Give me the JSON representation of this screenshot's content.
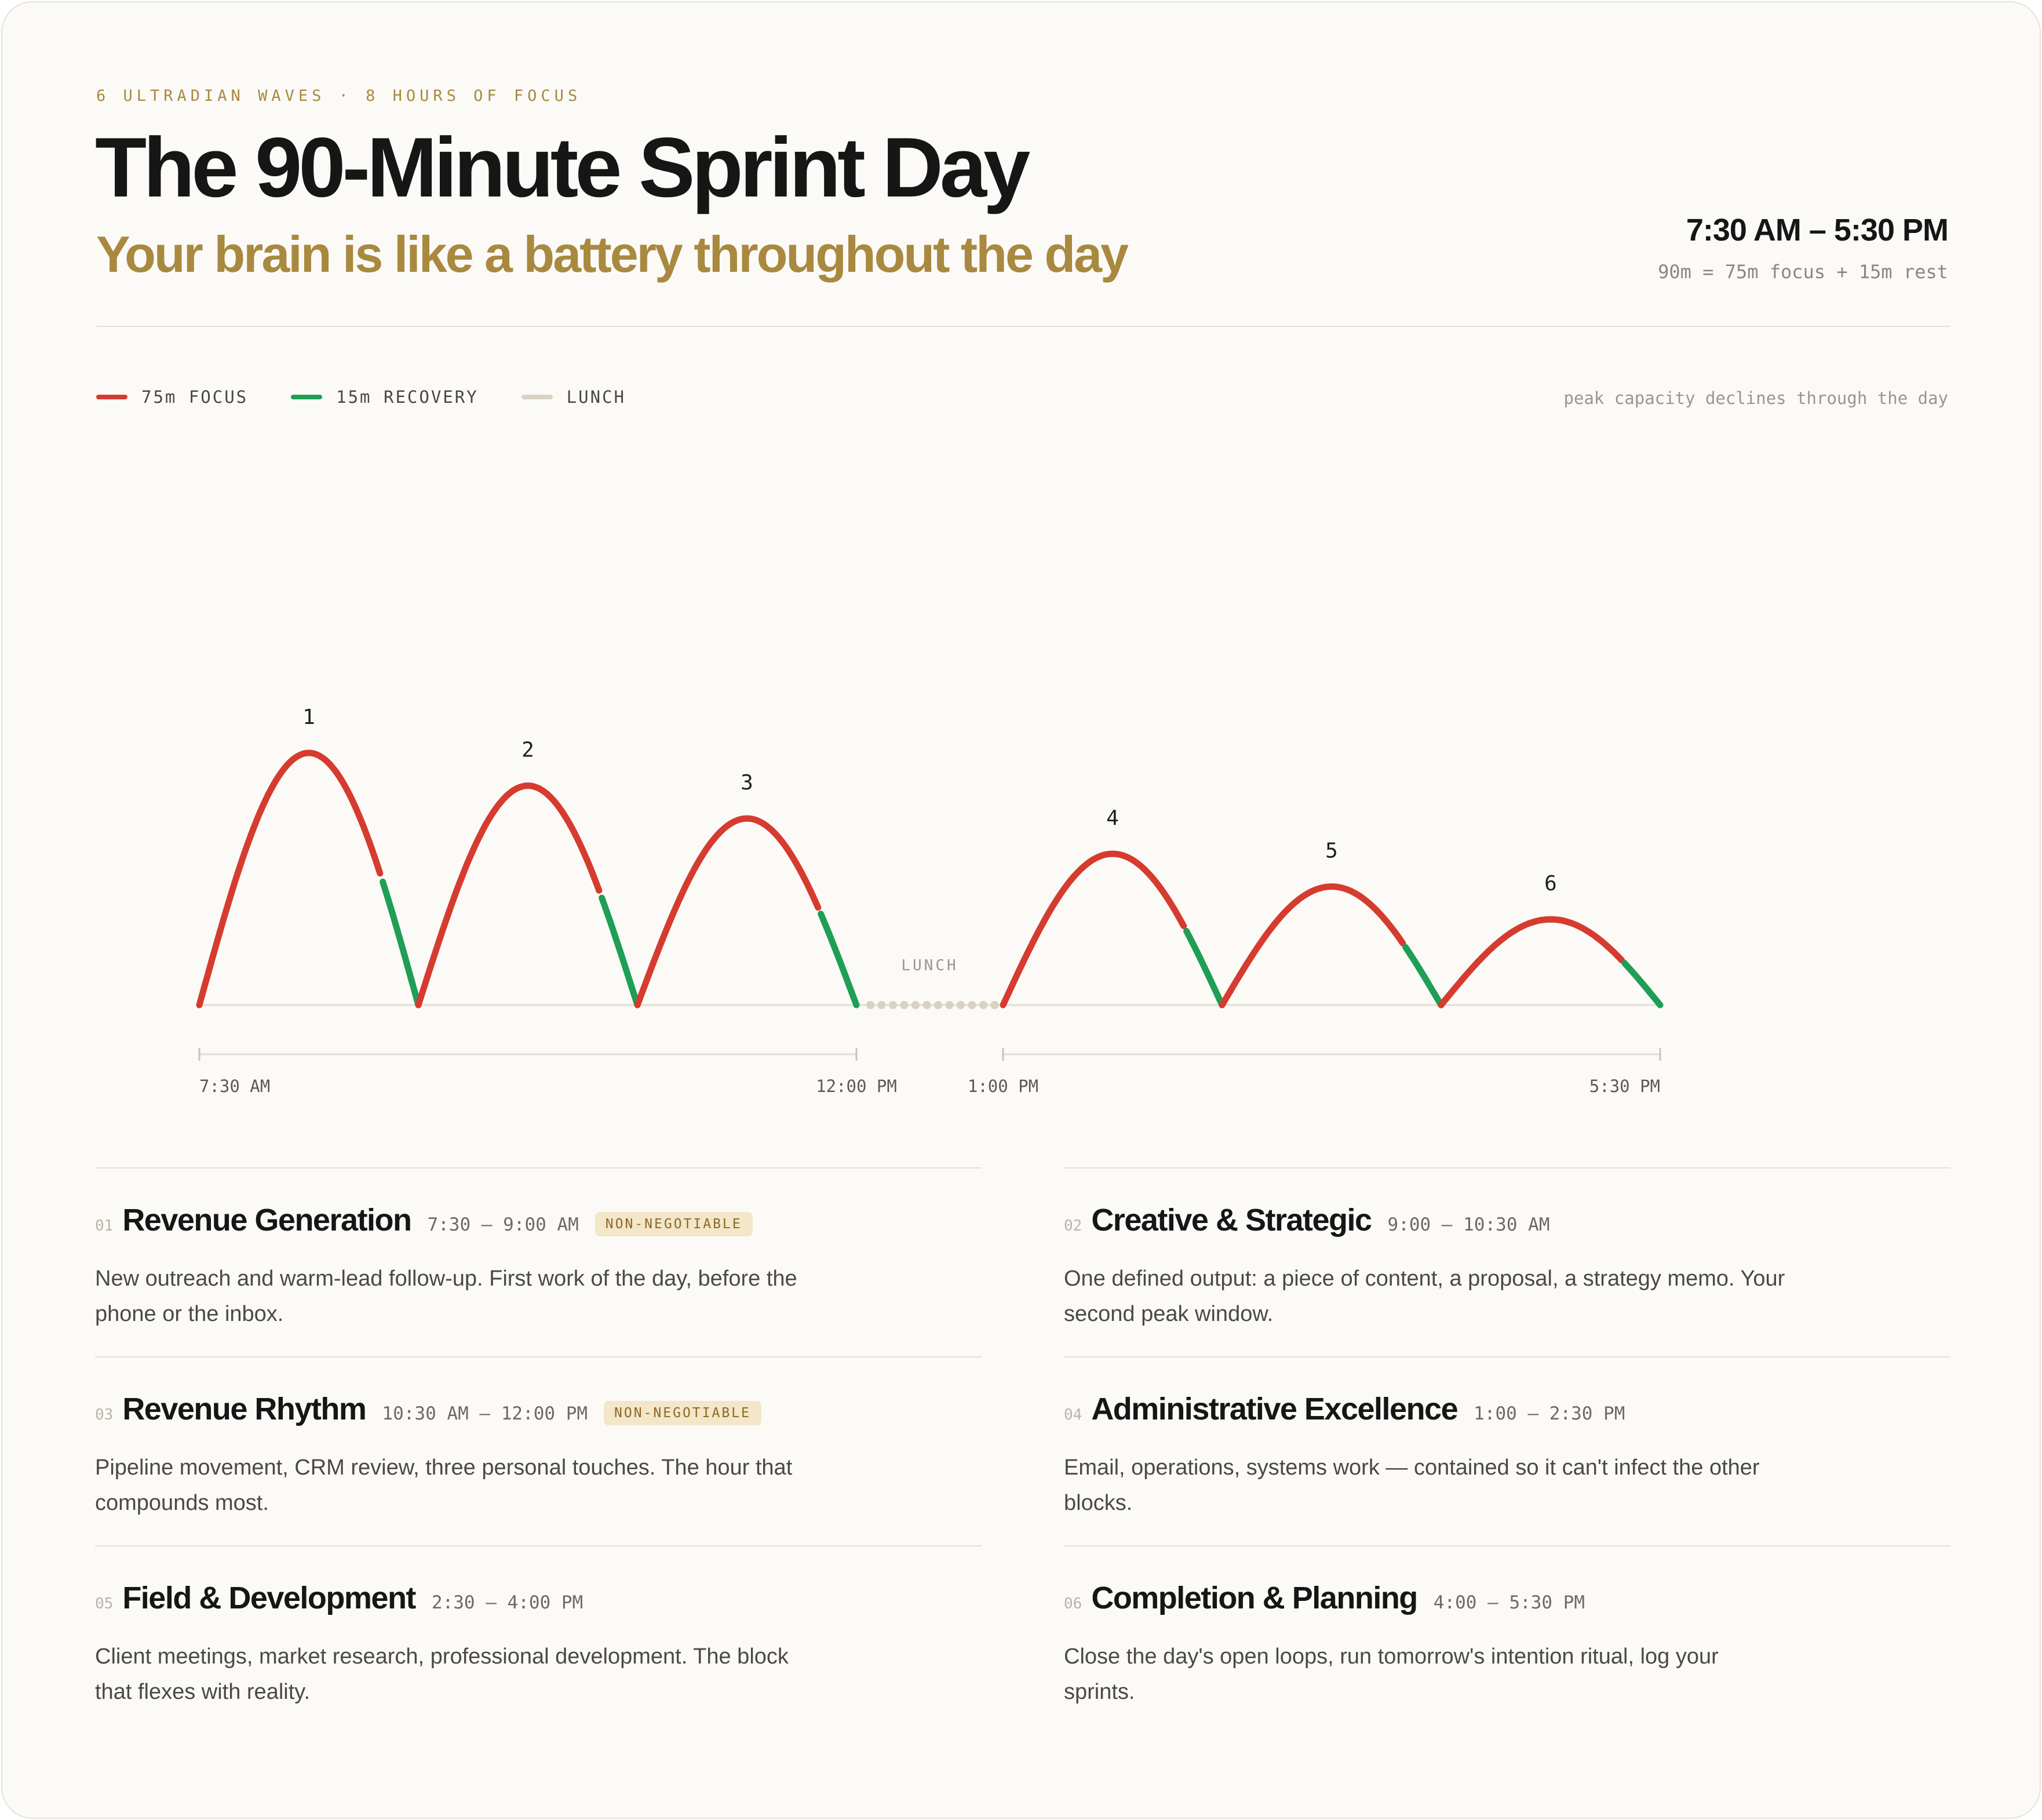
{
  "header": {
    "eyebrow": "6 ULTRADIAN WAVES · 8 HOURS OF FOCUS",
    "title": "The 90-Minute Sprint Day",
    "subtitle": "Your brain is like a battery throughout the day",
    "time_range": "7:30 AM – 5:30 PM",
    "time_note": "90m = 75m focus + 15m rest"
  },
  "legend": {
    "items": [
      {
        "label": "75m FOCUS",
        "color": "#d63b2f"
      },
      {
        "label": "15m RECOVERY",
        "color": "#1f9e55"
      },
      {
        "label": "LUNCH",
        "color": "#d8d2c2"
      }
    ],
    "note": "peak capacity declines through the day"
  },
  "chart_data": {
    "type": "area",
    "x_axis_ticks": [
      "7:30 AM",
      "12:00 PM",
      "1:00 PM",
      "5:30 PM"
    ],
    "lunch_label": "LUNCH",
    "lunch": {
      "start": "12:00 PM",
      "end": "1:00 PM"
    },
    "focus_minutes": 75,
    "recovery_minutes": 15,
    "waves": [
      {
        "label": "1",
        "start": "7:30 AM",
        "end": "9:00 AM",
        "capacity": 1.0
      },
      {
        "label": "2",
        "start": "9:00 AM",
        "end": "10:30 AM",
        "capacity": 0.87
      },
      {
        "label": "3",
        "start": "10:30 AM",
        "end": "12:00 PM",
        "capacity": 0.74
      },
      {
        "label": "4",
        "start": "1:00 PM",
        "end": "2:30 PM",
        "capacity": 0.6
      },
      {
        "label": "5",
        "start": "2:30 PM",
        "end": "4:00 PM",
        "capacity": 0.47
      },
      {
        "label": "6",
        "start": "4:00 PM",
        "end": "5:30 PM",
        "capacity": 0.34
      }
    ],
    "colors": {
      "focus": "#d63b2f",
      "recovery": "#1f9e55",
      "lunch": "#d8d2c2",
      "baseline": "#e2ddd0"
    }
  },
  "blocks": [
    {
      "num": "01",
      "title": "Revenue Generation",
      "time": "7:30 – 9:00 AM",
      "badge": "NON-NEGOTIABLE",
      "desc": "New outreach and warm-lead follow-up. First work of the day, before the phone or the inbox."
    },
    {
      "num": "02",
      "title": "Creative & Strategic",
      "time": "9:00 – 10:30 AM",
      "badge": "",
      "desc": "One defined output: a piece of content, a proposal, a strategy memo. Your second peak window."
    },
    {
      "num": "03",
      "title": "Revenue Rhythm",
      "time": "10:30 AM – 12:00 PM",
      "badge": "NON-NEGOTIABLE",
      "desc": "Pipeline movement, CRM review, three personal touches. The hour that compounds most."
    },
    {
      "num": "04",
      "title": "Administrative Excellence",
      "time": "1:00 – 2:30 PM",
      "badge": "",
      "desc": "Email, operations, systems work — contained so it can't infect the other blocks."
    },
    {
      "num": "05",
      "title": "Field & Development",
      "time": "2:30 – 4:00 PM",
      "badge": "",
      "desc": "Client meetings, market research, professional development. The block that flexes with reality."
    },
    {
      "num": "06",
      "title": "Completion & Planning",
      "time": "4:00 – 5:30 PM",
      "badge": "",
      "desc": "Close the day's open loops, run tomorrow's intention ritual, log your sprints."
    }
  ]
}
